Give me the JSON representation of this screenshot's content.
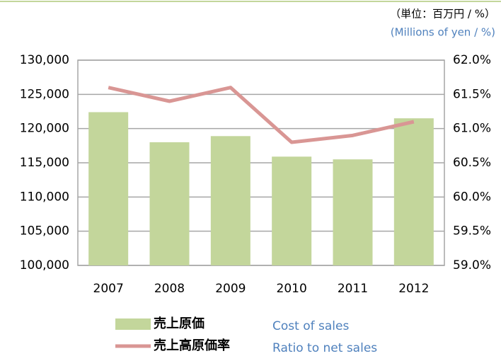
{
  "chart_data": {
    "type": "bar_line",
    "unit_ja": "（単位：百万円 / %）",
    "unit_en": "(Millions of yen / %)",
    "categories": [
      "2007",
      "2008",
      "2009",
      "2010",
      "2011",
      "2012"
    ],
    "series": [
      {
        "name": "売上原価",
        "name_en": "Cost of sales",
        "color": "#c3d69b",
        "type": "bar",
        "values": [
          122400,
          118000,
          118900,
          115900,
          115500,
          121500
        ]
      },
      {
        "name": "売上高原価率",
        "name_en": "Ratio to net sales",
        "color": "#d99694",
        "type": "line",
        "axis": "y2",
        "values": [
          61.6,
          61.4,
          61.6,
          60.8,
          60.9,
          61.1
        ]
      }
    ],
    "ylim": [
      100000,
      130000
    ],
    "yticks": [
      {
        "value": 100000,
        "label": "100,000"
      },
      {
        "value": 105000,
        "label": "105,000"
      },
      {
        "value": 110000,
        "label": "110,000"
      },
      {
        "value": 115000,
        "label": "115,000"
      },
      {
        "value": 120000,
        "label": "120,000"
      },
      {
        "value": 125000,
        "label": "125,000"
      },
      {
        "value": 130000,
        "label": "130,000"
      }
    ],
    "y2lim": [
      59,
      62
    ],
    "y2ticks": [
      {
        "value": 59,
        "label": "59.0%"
      },
      {
        "value": 59.5,
        "label": "59.5%"
      },
      {
        "value": 60,
        "label": "60.0%"
      },
      {
        "value": 60.5,
        "label": "60.5%"
      },
      {
        "value": 61,
        "label": "61.0%"
      },
      {
        "value": 61.5,
        "label": "61.5%"
      },
      {
        "value": 62,
        "label": "62.0%"
      }
    ],
    "grid": true
  }
}
